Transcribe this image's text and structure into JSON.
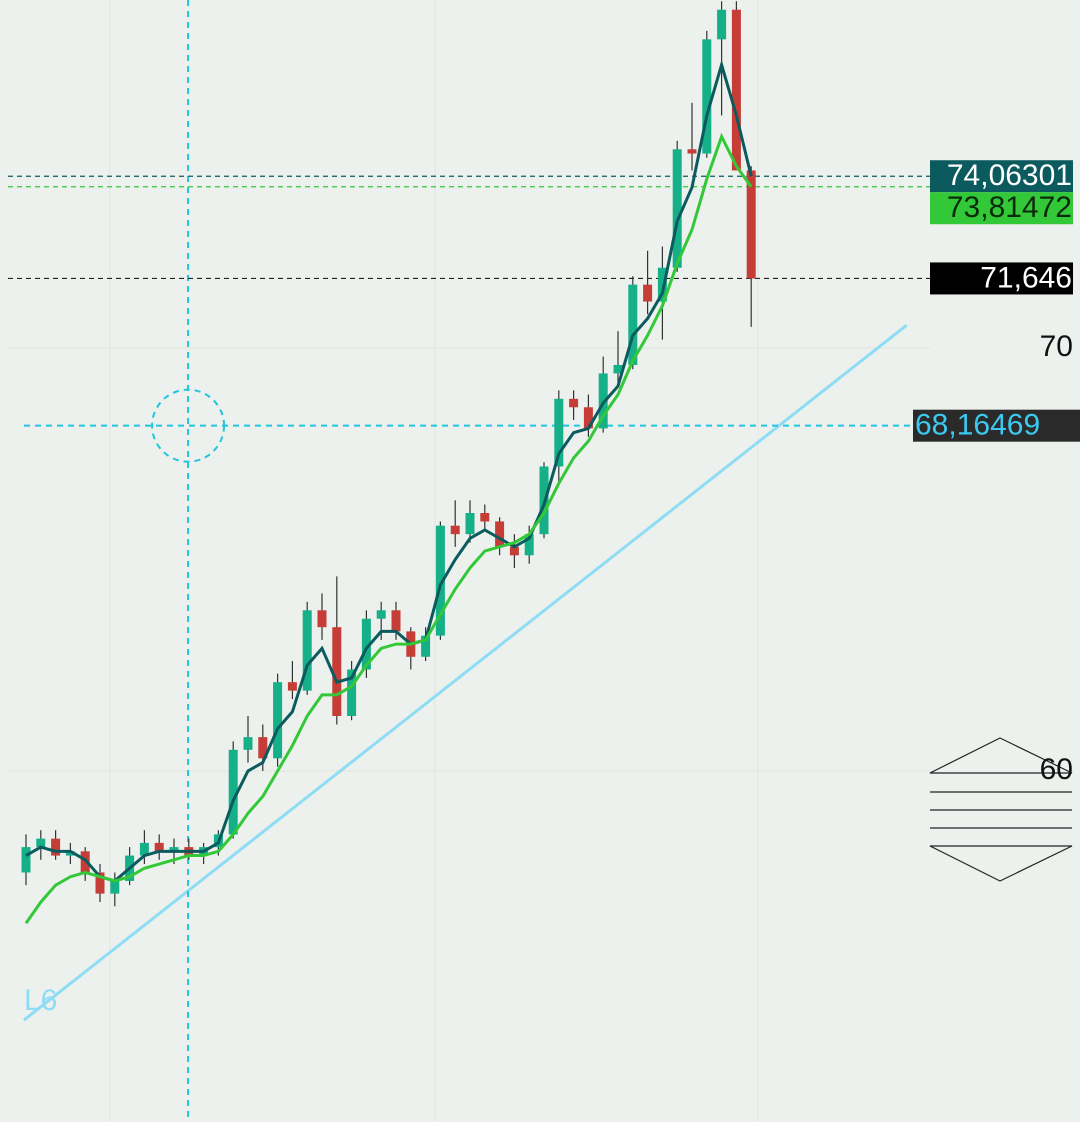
{
  "chart_data": {
    "type": "candlestick",
    "ylim": [
      51.7,
      78.23
    ],
    "yticks": [
      60,
      70
    ],
    "grid": true,
    "up_color": "#16b088",
    "down_color": "#c53d36",
    "candles": {
      "open": [
        57.6,
        58.2,
        58.4,
        58.0,
        58.1,
        57.6,
        57.1,
        57.4,
        58.0,
        58.3,
        58.1,
        58.2,
        58.0,
        58.2,
        58.5,
        60.5,
        60.8,
        60.3,
        62.1,
        61.9,
        63.8,
        63.4,
        61.3,
        62.4,
        63.6,
        63.8,
        63.3,
        62.7,
        63.2,
        65.8,
        65.6,
        66.1,
        65.9,
        65.3,
        65.1,
        65.6,
        67.2,
        68.8,
        68.6,
        68.1,
        69.4,
        69.6,
        71.5,
        71.1,
        71.9,
        74.7,
        74.6,
        77.3,
        78.0,
        74.2
      ],
      "high": [
        58.5,
        58.6,
        58.6,
        58.3,
        58.2,
        57.8,
        57.6,
        58.2,
        58.6,
        58.5,
        58.4,
        58.4,
        58.3,
        58.6,
        60.7,
        61.3,
        61.1,
        62.3,
        62.6,
        64.0,
        64.2,
        64.6,
        62.6,
        63.8,
        64.0,
        64.0,
        63.4,
        63.4,
        65.9,
        66.4,
        66.4,
        66.3,
        66.0,
        65.6,
        65.8,
        67.3,
        69.0,
        69.0,
        68.9,
        69.8,
        70.4,
        71.7,
        72.3,
        72.4,
        74.9,
        75.8,
        77.5,
        78.2,
        78.2,
        74.3
      ],
      "low": [
        57.3,
        57.9,
        57.9,
        57.8,
        57.4,
        56.9,
        56.8,
        57.3,
        57.8,
        57.9,
        57.8,
        57.9,
        57.8,
        58.0,
        58.4,
        60.2,
        60.0,
        60.1,
        61.7,
        61.8,
        63.1,
        61.1,
        61.2,
        62.2,
        63.1,
        63.1,
        62.4,
        62.6,
        63.1,
        65.3,
        65.4,
        65.7,
        65.1,
        64.8,
        64.9,
        65.5,
        66.8,
        68.3,
        67.9,
        68.0,
        69.1,
        69.5,
        70.8,
        70.2,
        71.8,
        74.2,
        74.5,
        75.5,
        75.6,
        70.5
      ],
      "close": [
        58.2,
        58.4,
        58.0,
        58.1,
        57.6,
        57.1,
        57.4,
        58.0,
        58.3,
        58.1,
        58.2,
        58.0,
        58.2,
        58.5,
        60.5,
        60.8,
        60.3,
        62.1,
        61.9,
        63.8,
        63.4,
        61.3,
        62.4,
        63.6,
        63.8,
        63.3,
        62.7,
        63.2,
        65.8,
        65.6,
        66.1,
        65.9,
        65.3,
        65.1,
        65.6,
        67.2,
        68.8,
        68.6,
        68.1,
        69.4,
        69.6,
        71.5,
        71.1,
        71.9,
        74.7,
        74.6,
        77.3,
        78.0,
        74.2,
        71.646
      ]
    },
    "series": [
      {
        "color": "#0b5a5e",
        "values": [
          58.0,
          58.2,
          58.1,
          58.1,
          57.9,
          57.5,
          57.4,
          57.7,
          58.0,
          58.1,
          58.1,
          58.1,
          58.1,
          58.3,
          59.3,
          60.0,
          60.2,
          61.0,
          61.4,
          62.5,
          62.9,
          62.1,
          62.2,
          62.9,
          63.3,
          63.3,
          63.0,
          63.1,
          64.4,
          65.0,
          65.5,
          65.7,
          65.5,
          65.3,
          65.5,
          66.3,
          67.5,
          68.0,
          68.1,
          68.7,
          69.1,
          70.3,
          70.7,
          71.3,
          73.0,
          73.8,
          75.5,
          76.7,
          75.5,
          74.06301
        ]
      },
      {
        "color": "#33c838",
        "values": [
          56.4,
          56.9,
          57.3,
          57.5,
          57.6,
          57.5,
          57.4,
          57.5,
          57.7,
          57.8,
          57.9,
          58.0,
          58.0,
          58.1,
          58.5,
          59.0,
          59.4,
          60.0,
          60.6,
          61.3,
          61.8,
          61.8,
          62.0,
          62.5,
          62.9,
          63.0,
          63.0,
          63.1,
          63.7,
          64.3,
          64.8,
          65.2,
          65.3,
          65.4,
          65.6,
          66.1,
          66.8,
          67.4,
          67.8,
          68.4,
          68.9,
          69.7,
          70.3,
          71.0,
          72.0,
          72.8,
          74.0,
          75.0,
          74.3,
          73.81472
        ]
      }
    ],
    "price_labels": [
      {
        "value": 74.06301,
        "label": "74,06301",
        "color": "#0b5a5e",
        "text_color": "#ffffff"
      },
      {
        "value": 73.81472,
        "label": "73,81472",
        "color": "#33c838",
        "text_color": "#0a2a0a"
      },
      {
        "value": 71.646,
        "label": "71,646",
        "color": "#000000",
        "text_color": "#ffffff"
      }
    ],
    "crosshair": {
      "index": 10.95,
      "value": 68.16469,
      "label": "68,16469",
      "color": "#22c4e0"
    },
    "trendline": {
      "label": "L6",
      "start": [
        -0.14,
        54.11
      ],
      "end": [
        59.5,
        70.54
      ],
      "color": "#8fdcf5"
    }
  }
}
